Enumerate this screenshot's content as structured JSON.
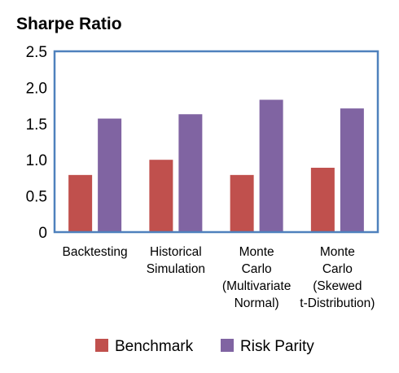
{
  "chart_data": {
    "type": "bar",
    "title": "Sharpe Ratio",
    "xlabel": "",
    "ylabel": "",
    "ylim": [
      0,
      2.5
    ],
    "yticks": [
      "0",
      "0.5",
      "1.0",
      "1.5",
      "2.0",
      "2.5"
    ],
    "grid": false,
    "legend_position": "bottom",
    "categories": [
      [
        "Backtesting"
      ],
      [
        "Historical",
        "Simulation"
      ],
      [
        "Monte",
        "Carlo",
        "(Multivariate",
        "Normal)"
      ],
      [
        "Monte",
        "Carlo",
        "(Skewed",
        "t-Distribution)"
      ]
    ],
    "series": [
      {
        "name": "Benchmark",
        "color": "#c0504d",
        "values": [
          0.79,
          1.0,
          0.79,
          0.89
        ]
      },
      {
        "name": "Risk Parity",
        "color": "#8064a2",
        "values": [
          1.57,
          1.63,
          1.83,
          1.71
        ]
      }
    ],
    "axis_color": "#4f81bd"
  }
}
